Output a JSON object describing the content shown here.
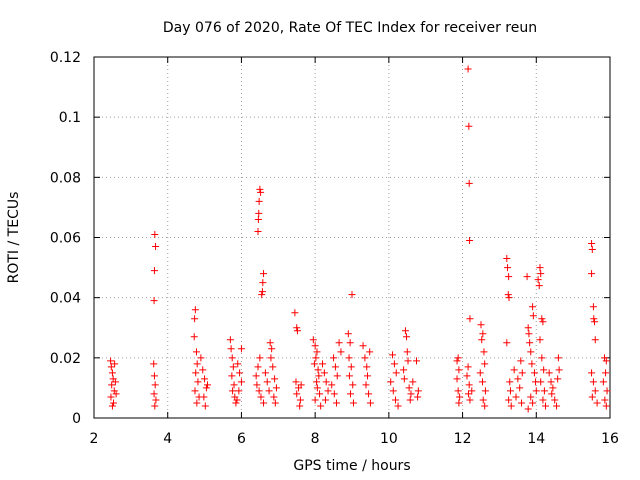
{
  "chart_data": {
    "type": "scatter",
    "title": "Day 076 of 2020, Rate Of TEC Index for receiver reun",
    "xlabel": "GPS time / hours",
    "ylabel": "ROTI / TECUs",
    "xlim": [
      2,
      16
    ],
    "ylim": [
      0,
      0.12
    ],
    "xticks": [
      2,
      4,
      6,
      8,
      10,
      12,
      14,
      16
    ],
    "yticks": [
      0,
      0.02,
      0.04,
      0.06,
      0.08,
      0.1,
      0.12
    ],
    "xtick_labels": [
      "2",
      "4",
      "6",
      "8",
      "10",
      "12",
      "14",
      "16"
    ],
    "ytick_labels": [
      "0",
      "0.02",
      "0.04",
      "0.06",
      "0.08",
      "0.1",
      "0.12"
    ],
    "grid": true,
    "marker": "+",
    "color": "#ff0000",
    "series": [
      {
        "points": [
          [
            2.45,
            0.019
          ],
          [
            2.47,
            0.017
          ],
          [
            2.5,
            0.015
          ],
          [
            2.52,
            0.013
          ],
          [
            2.48,
            0.011
          ],
          [
            2.55,
            0.009
          ],
          [
            2.46,
            0.007
          ],
          [
            2.53,
            0.005
          ],
          [
            2.58,
            0.012
          ],
          [
            2.6,
            0.008
          ],
          [
            2.5,
            0.004
          ],
          [
            2.56,
            0.018
          ],
          [
            3.65,
            0.061
          ],
          [
            3.67,
            0.057
          ],
          [
            3.64,
            0.049
          ],
          [
            3.63,
            0.039
          ],
          [
            3.62,
            0.018
          ],
          [
            3.64,
            0.014
          ],
          [
            3.66,
            0.011
          ],
          [
            3.63,
            0.008
          ],
          [
            3.68,
            0.006
          ],
          [
            3.65,
            0.004
          ],
          [
            4.75,
            0.036
          ],
          [
            4.73,
            0.033
          ],
          [
            4.72,
            0.027
          ],
          [
            4.78,
            0.022
          ],
          [
            4.8,
            0.018
          ],
          [
            4.76,
            0.015
          ],
          [
            4.82,
            0.012
          ],
          [
            4.74,
            0.009
          ],
          [
            4.85,
            0.007
          ],
          [
            4.79,
            0.005
          ],
          [
            4.9,
            0.02
          ],
          [
            4.95,
            0.016
          ],
          [
            5.0,
            0.013
          ],
          [
            5.05,
            0.01
          ],
          [
            4.98,
            0.007
          ],
          [
            5.02,
            0.004
          ],
          [
            5.08,
            0.011
          ],
          [
            5.7,
            0.026
          ],
          [
            5.72,
            0.023
          ],
          [
            5.75,
            0.02
          ],
          [
            5.78,
            0.017
          ],
          [
            5.74,
            0.014
          ],
          [
            5.8,
            0.011
          ],
          [
            5.76,
            0.009
          ],
          [
            5.82,
            0.007
          ],
          [
            5.85,
            0.005
          ],
          [
            5.9,
            0.018
          ],
          [
            5.95,
            0.015
          ],
          [
            6.0,
            0.012
          ],
          [
            5.93,
            0.009
          ],
          [
            5.88,
            0.006
          ],
          [
            6.0,
            0.023
          ],
          [
            6.5,
            0.076
          ],
          [
            6.52,
            0.075
          ],
          [
            6.48,
            0.072
          ],
          [
            6.47,
            0.068
          ],
          [
            6.46,
            0.066
          ],
          [
            6.45,
            0.062
          ],
          [
            6.6,
            0.048
          ],
          [
            6.58,
            0.045
          ],
          [
            6.57,
            0.042
          ],
          [
            6.55,
            0.041
          ],
          [
            6.5,
            0.02
          ],
          [
            6.45,
            0.017
          ],
          [
            6.4,
            0.014
          ],
          [
            6.42,
            0.011
          ],
          [
            6.48,
            0.009
          ],
          [
            6.53,
            0.007
          ],
          [
            6.6,
            0.005
          ],
          [
            6.65,
            0.015
          ],
          [
            6.7,
            0.012
          ],
          [
            6.75,
            0.009
          ],
          [
            6.8,
            0.02
          ],
          [
            6.85,
            0.017
          ],
          [
            6.9,
            0.013
          ],
          [
            6.78,
            0.025
          ],
          [
            6.82,
            0.023
          ],
          [
            6.95,
            0.01
          ],
          [
            6.88,
            0.007
          ],
          [
            6.92,
            0.005
          ],
          [
            7.45,
            0.035
          ],
          [
            7.5,
            0.03
          ],
          [
            7.52,
            0.029
          ],
          [
            7.48,
            0.012
          ],
          [
            7.55,
            0.01
          ],
          [
            7.5,
            0.008
          ],
          [
            7.6,
            0.006
          ],
          [
            7.58,
            0.004
          ],
          [
            7.62,
            0.011
          ],
          [
            7.95,
            0.026
          ],
          [
            8.0,
            0.024
          ],
          [
            8.05,
            0.022
          ],
          [
            8.02,
            0.02
          ],
          [
            7.98,
            0.018
          ],
          [
            8.08,
            0.016
          ],
          [
            8.1,
            0.014
          ],
          [
            8.04,
            0.012
          ],
          [
            8.06,
            0.01
          ],
          [
            8.12,
            0.008
          ],
          [
            8.0,
            0.006
          ],
          [
            8.15,
            0.004
          ],
          [
            8.2,
            0.018
          ],
          [
            8.25,
            0.015
          ],
          [
            8.3,
            0.012
          ],
          [
            8.35,
            0.009
          ],
          [
            8.28,
            0.006
          ],
          [
            8.5,
            0.02
          ],
          [
            8.55,
            0.017
          ],
          [
            8.6,
            0.014
          ],
          [
            8.45,
            0.011
          ],
          [
            8.52,
            0.008
          ],
          [
            8.58,
            0.005
          ],
          [
            8.65,
            0.025
          ],
          [
            8.7,
            0.022
          ],
          [
            8.9,
            0.028
          ],
          [
            8.95,
            0.025
          ],
          [
            8.92,
            0.02
          ],
          [
            9.0,
            0.041
          ],
          [
            8.98,
            0.017
          ],
          [
            8.93,
            0.014
          ],
          [
            9.02,
            0.011
          ],
          [
            8.96,
            0.008
          ],
          [
            9.04,
            0.005
          ],
          [
            9.3,
            0.024
          ],
          [
            9.35,
            0.02
          ],
          [
            9.4,
            0.017
          ],
          [
            9.42,
            0.014
          ],
          [
            9.38,
            0.011
          ],
          [
            9.45,
            0.008
          ],
          [
            9.5,
            0.005
          ],
          [
            9.48,
            0.022
          ],
          [
            10.1,
            0.021
          ],
          [
            10.15,
            0.018
          ],
          [
            10.2,
            0.015
          ],
          [
            10.05,
            0.012
          ],
          [
            10.12,
            0.009
          ],
          [
            10.18,
            0.006
          ],
          [
            10.25,
            0.004
          ],
          [
            10.45,
            0.029
          ],
          [
            10.48,
            0.027
          ],
          [
            10.5,
            0.022
          ],
          [
            10.52,
            0.019
          ],
          [
            10.4,
            0.016
          ],
          [
            10.42,
            0.013
          ],
          [
            10.55,
            0.01
          ],
          [
            10.6,
            0.008
          ],
          [
            10.58,
            0.006
          ],
          [
            10.65,
            0.012
          ],
          [
            10.75,
            0.019
          ],
          [
            10.8,
            0.009
          ],
          [
            10.78,
            0.007
          ],
          [
            11.85,
            0.019
          ],
          [
            11.88,
            0.02
          ],
          [
            11.9,
            0.016
          ],
          [
            11.85,
            0.013
          ],
          [
            11.88,
            0.009
          ],
          [
            11.92,
            0.007
          ],
          [
            11.9,
            0.005
          ],
          [
            12.15,
            0.116
          ],
          [
            12.17,
            0.097
          ],
          [
            12.18,
            0.078
          ],
          [
            12.19,
            0.059
          ],
          [
            12.2,
            0.033
          ],
          [
            12.15,
            0.017
          ],
          [
            12.12,
            0.014
          ],
          [
            12.18,
            0.011
          ],
          [
            12.16,
            0.008
          ],
          [
            12.2,
            0.006
          ],
          [
            12.25,
            0.009
          ],
          [
            12.5,
            0.031
          ],
          [
            12.55,
            0.028
          ],
          [
            12.52,
            0.026
          ],
          [
            12.58,
            0.022
          ],
          [
            12.6,
            0.018
          ],
          [
            12.48,
            0.015
          ],
          [
            12.54,
            0.012
          ],
          [
            12.62,
            0.009
          ],
          [
            12.56,
            0.006
          ],
          [
            12.6,
            0.004
          ],
          [
            13.2,
            0.053
          ],
          [
            13.22,
            0.05
          ],
          [
            13.25,
            0.047
          ],
          [
            13.24,
            0.041
          ],
          [
            13.26,
            0.04
          ],
          [
            13.2,
            0.025
          ],
          [
            13.28,
            0.012
          ],
          [
            13.3,
            0.009
          ],
          [
            13.25,
            0.006
          ],
          [
            13.32,
            0.004
          ],
          [
            13.4,
            0.016
          ],
          [
            13.5,
            0.013
          ],
          [
            13.55,
            0.01
          ],
          [
            13.45,
            0.007
          ],
          [
            13.6,
            0.005
          ],
          [
            13.58,
            0.019
          ],
          [
            13.62,
            0.015
          ],
          [
            13.75,
            0.047
          ],
          [
            13.78,
            0.03
          ],
          [
            13.8,
            0.028
          ],
          [
            13.82,
            0.025
          ],
          [
            13.85,
            0.022
          ],
          [
            13.88,
            0.018
          ],
          [
            13.9,
            0.037
          ],
          [
            13.92,
            0.034
          ],
          [
            13.95,
            0.015
          ],
          [
            13.98,
            0.012
          ],
          [
            14.0,
            0.009
          ],
          [
            13.85,
            0.007
          ],
          [
            13.9,
            0.005
          ],
          [
            13.78,
            0.003
          ],
          [
            14.05,
            0.046
          ],
          [
            14.08,
            0.044
          ],
          [
            14.1,
            0.05
          ],
          [
            14.12,
            0.048
          ],
          [
            14.15,
            0.033
          ],
          [
            14.18,
            0.032
          ],
          [
            14.1,
            0.026
          ],
          [
            14.15,
            0.02
          ],
          [
            14.2,
            0.016
          ],
          [
            14.12,
            0.012
          ],
          [
            14.22,
            0.009
          ],
          [
            14.18,
            0.006
          ],
          [
            14.25,
            0.004
          ],
          [
            14.35,
            0.015
          ],
          [
            14.4,
            0.012
          ],
          [
            14.45,
            0.01
          ],
          [
            14.42,
            0.008
          ],
          [
            14.5,
            0.006
          ],
          [
            14.55,
            0.004
          ],
          [
            14.6,
            0.02
          ],
          [
            14.62,
            0.016
          ],
          [
            14.58,
            0.013
          ],
          [
            15.5,
            0.058
          ],
          [
            15.52,
            0.056
          ],
          [
            15.5,
            0.048
          ],
          [
            15.55,
            0.037
          ],
          [
            15.56,
            0.033
          ],
          [
            15.58,
            0.032
          ],
          [
            15.6,
            0.026
          ],
          [
            15.5,
            0.015
          ],
          [
            15.55,
            0.012
          ],
          [
            15.6,
            0.009
          ],
          [
            15.52,
            0.007
          ],
          [
            15.65,
            0.005
          ],
          [
            15.85,
            0.02
          ],
          [
            15.9,
            0.019
          ],
          [
            15.88,
            0.015
          ],
          [
            15.82,
            0.012
          ],
          [
            15.92,
            0.009
          ],
          [
            15.86,
            0.006
          ],
          [
            15.9,
            0.004
          ]
        ]
      }
    ]
  }
}
